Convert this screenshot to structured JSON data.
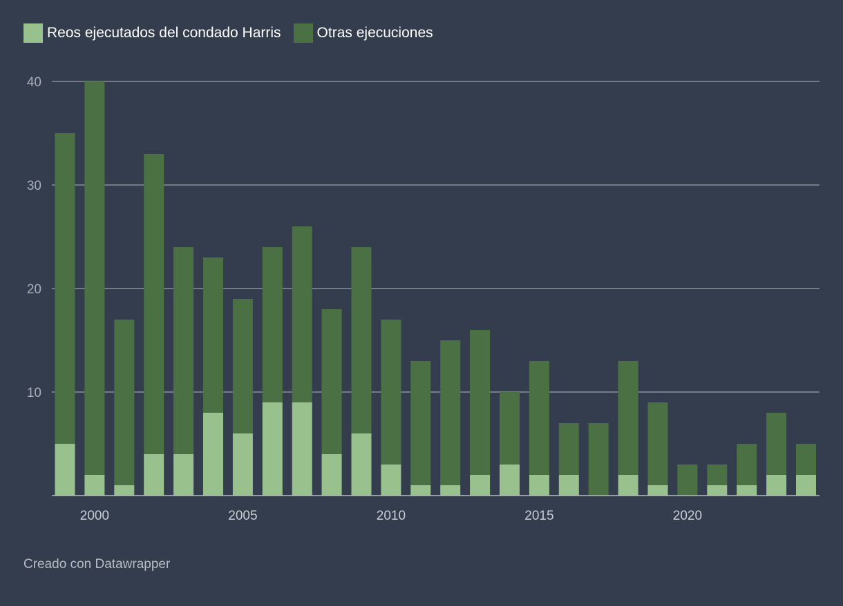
{
  "chart_data": {
    "type": "bar",
    "stacked": true,
    "title": "",
    "xlabel": "",
    "ylabel": "",
    "ylim": [
      0,
      40
    ],
    "yticks": [
      10,
      20,
      30,
      40
    ],
    "xticks": [
      2000,
      2005,
      2010,
      2015,
      2020
    ],
    "grid": true,
    "legend_placement": "top-left",
    "categories": [
      1999,
      2000,
      2001,
      2002,
      2003,
      2004,
      2005,
      2006,
      2007,
      2008,
      2009,
      2010,
      2011,
      2012,
      2013,
      2014,
      2015,
      2016,
      2017,
      2018,
      2019,
      2020,
      2021,
      2022,
      2023,
      2024
    ],
    "series": [
      {
        "name": "Reos ejecutados del condado Harris",
        "color": "#98c18e",
        "values": [
          5,
          2,
          1,
          4,
          4,
          8,
          6,
          9,
          9,
          4,
          6,
          3,
          1,
          1,
          2,
          3,
          2,
          2,
          0,
          2,
          1,
          0,
          1,
          1,
          2,
          2
        ]
      },
      {
        "name": "Otras ejecuciones",
        "color": "#4a7043",
        "values": [
          30,
          38,
          16,
          29,
          20,
          15,
          13,
          15,
          17,
          14,
          18,
          14,
          12,
          14,
          14,
          7,
          11,
          5,
          7,
          11,
          8,
          3,
          2,
          4,
          6,
          3
        ]
      }
    ],
    "totals": [
      35,
      40,
      17,
      33,
      24,
      23,
      19,
      24,
      26,
      18,
      24,
      17,
      13,
      15,
      16,
      10,
      13,
      7,
      7,
      13,
      9,
      3,
      3,
      5,
      8,
      5
    ]
  },
  "footer": "Creado con Datawrapper"
}
